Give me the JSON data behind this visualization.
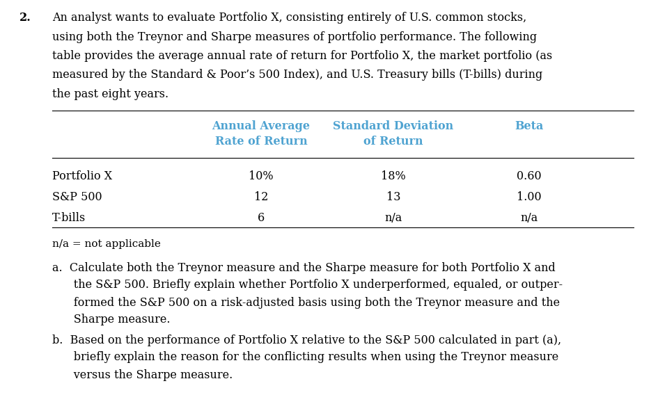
{
  "background_color": "#ffffff",
  "question_number": "2.",
  "intro_text": "An analyst wants to evaluate Portfolio X, consisting entirely of U.S. common stocks,\nusing both the Treynor and Sharpe measures of portfolio performance. The following\ntable provides the average annual rate of return for Portfolio X, the market portfolio (as\nmeasured by the Standard & Poor’s 500 Index), and U.S. Treasury bills (T-bills) during\nthe past eight years.",
  "col_headers": [
    "Annual Average\nRate of Return",
    "Standard Deviation\nof Return",
    "Beta"
  ],
  "col_header_color": "#4fa3d1",
  "row_labels": [
    "Portfolio X",
    "S&P 500",
    "T-bills"
  ],
  "row_data": [
    [
      "10%",
      "18%",
      "0.60"
    ],
    [
      "12",
      "13",
      "1.00"
    ],
    [
      "6",
      "n/a",
      "n/a"
    ]
  ],
  "footnote": "n/a = not applicable",
  "part_a": "a.  Calculate both the Treynor measure and the Sharpe measure for both Portfolio X and\n      the S&P 500. Briefly explain whether Portfolio X underperformed, equaled, or outper-\n      formed the S&P 500 on a risk-adjusted basis using both the Treynor measure and the\n      Sharpe measure.",
  "part_b": "b.  Based on the performance of Portfolio X relative to the S&P 500 calculated in part (a),\n      briefly explain the reason for the conflicting results when using the Treynor measure\n      versus the Sharpe measure.",
  "font_size_body": 11.5,
  "font_size_table": 11.5,
  "font_family": "serif"
}
